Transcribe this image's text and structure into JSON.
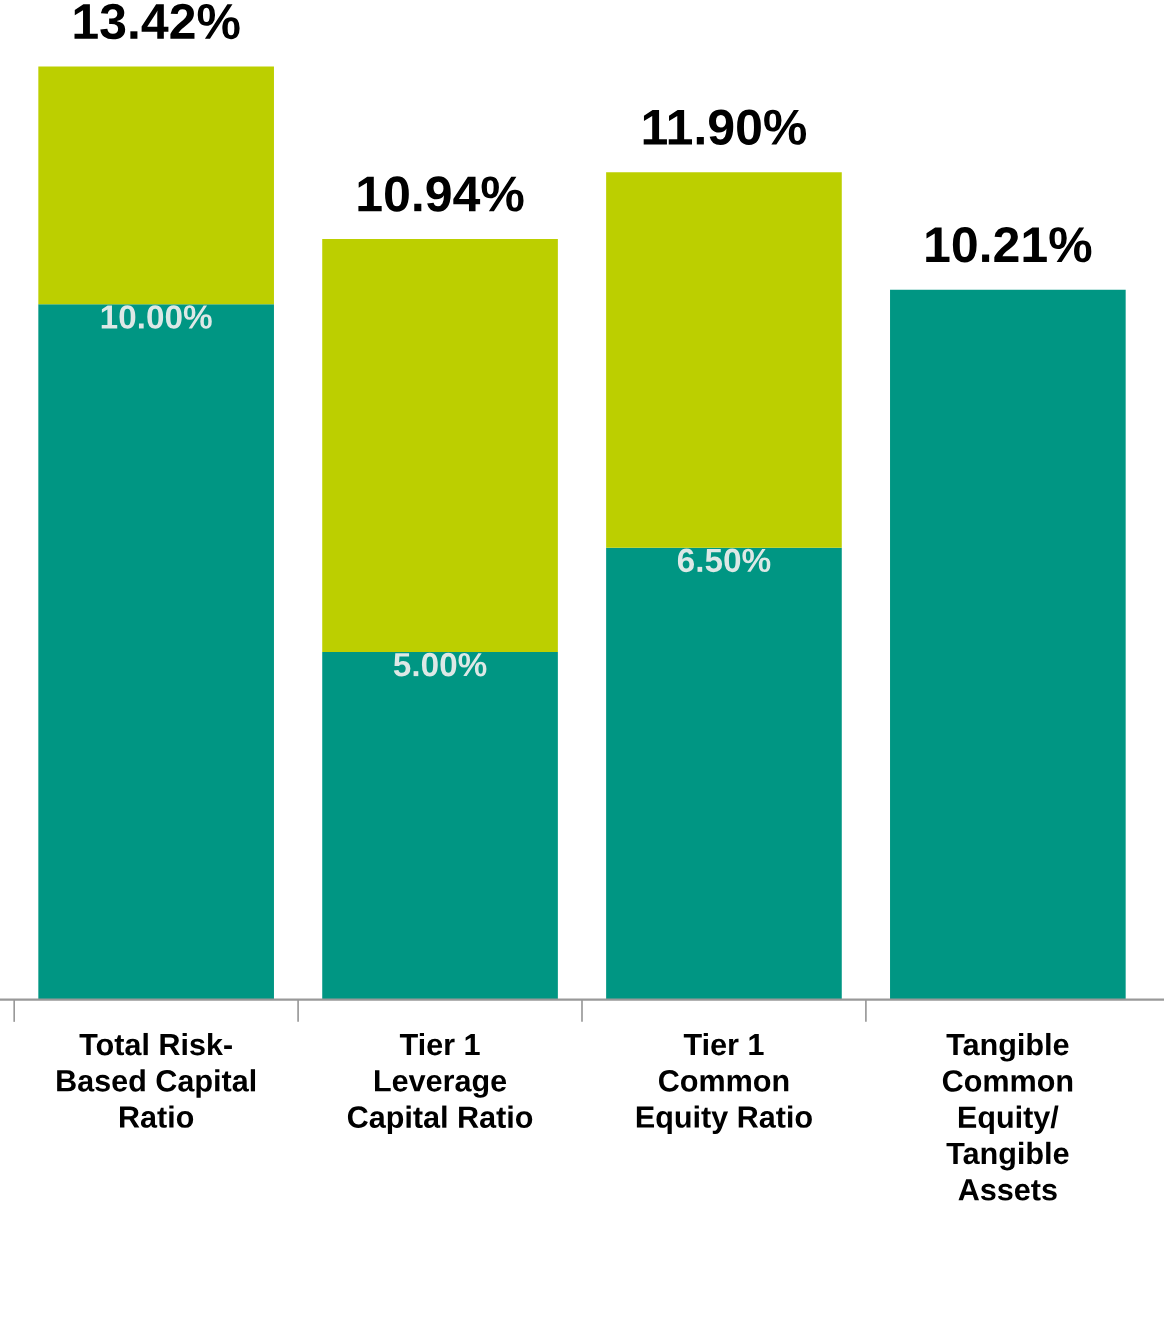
{
  "chart_data": {
    "type": "bar",
    "stacked": true,
    "categories": [
      "Total Risk-\nBased Capital\nRatio",
      "Tier 1\nLeverage\nCapital Ratio",
      "Tier 1\nCommon\nEquity Ratio",
      "Tangible\nCommon\nEquity/\nTangible\nAssets"
    ],
    "series": [
      {
        "color": "#009683",
        "values": [
          10.0,
          5.0,
          6.5,
          10.21
        ],
        "value_labels": [
          "10.00%",
          "5.00%",
          "6.50%",
          null
        ]
      },
      {
        "color": "#bccf00",
        "values": [
          3.42,
          5.94,
          5.4,
          null
        ]
      }
    ],
    "totals": [
      "13.42%",
      "10.94%",
      "11.90%",
      "10.21%"
    ],
    "tick_labels": "x",
    "grid": false,
    "legend": false
  }
}
